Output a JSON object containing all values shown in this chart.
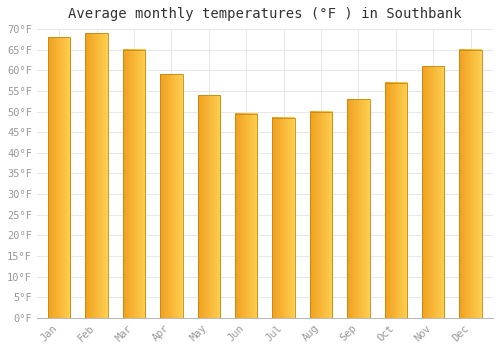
{
  "title": "Average monthly temperatures (°F ) in Southbank",
  "months": [
    "Jan",
    "Feb",
    "Mar",
    "Apr",
    "May",
    "Jun",
    "Jul",
    "Aug",
    "Sep",
    "Oct",
    "Nov",
    "Dec"
  ],
  "values": [
    68,
    69,
    65,
    59,
    54,
    49.5,
    48.5,
    50,
    53,
    57,
    61,
    65
  ],
  "bar_color_bottom": "#F5A623",
  "bar_color_top": "#FFD966",
  "bar_edge_color": "#C8860A",
  "background_color": "#FFFFFF",
  "grid_color": "#E8E8E8",
  "ylim": [
    0,
    70
  ],
  "yticks": [
    0,
    5,
    10,
    15,
    20,
    25,
    30,
    35,
    40,
    45,
    50,
    55,
    60,
    65,
    70
  ],
  "title_fontsize": 10,
  "tick_fontsize": 7.5,
  "tick_color": "#999999",
  "bar_width": 0.6
}
